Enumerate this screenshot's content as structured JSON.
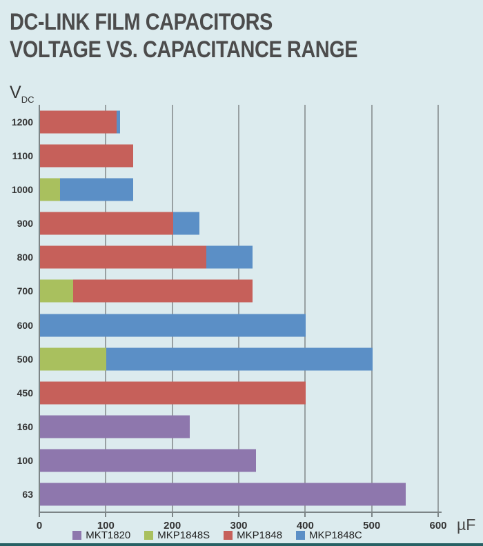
{
  "title": {
    "line1": "DC-LINK FILM CAPACITORS",
    "line2": "VOLTAGE VS. CAPACITANCE RANGE"
  },
  "axis": {
    "y_symbol": "V",
    "y_subscript": "DC",
    "x_unit": "µF"
  },
  "colors": {
    "background": "#dcebee",
    "bottom_strip": "#276064",
    "mkt1820": "#8e77ad",
    "mkp1848s": "#a9c05e",
    "mkp1848": "#c6605a",
    "mkp1848c": "#5b8fc6"
  },
  "chart_data": {
    "type": "bar",
    "orientation": "horizontal-stacked",
    "title": "DC-LINK FILM CAPACITORS VOLTAGE VS. CAPACITANCE RANGE",
    "xlabel": "µF",
    "ylabel": "VDC",
    "xlim": [
      0,
      600
    ],
    "x_ticks": [
      0,
      100,
      200,
      300,
      400,
      500,
      600
    ],
    "grid": true,
    "legend_position": "bottom",
    "categories": [
      "1200",
      "1100",
      "1000",
      "900",
      "800",
      "700",
      "600",
      "500",
      "450",
      "160",
      "100",
      "63"
    ],
    "series_legend": [
      {
        "name": "MKT1820",
        "color": "#8e77ad"
      },
      {
        "name": "MKP1848S",
        "color": "#a9c05e"
      },
      {
        "name": "MKP1848",
        "color": "#c6605a"
      },
      {
        "name": "MKP1848C",
        "color": "#5b8fc6"
      }
    ],
    "rows": [
      {
        "voltage": "1200",
        "segments": [
          {
            "series": "MKP1848",
            "from": 0,
            "to": 115
          },
          {
            "series": "MKP1848C",
            "from": 115,
            "to": 120
          }
        ]
      },
      {
        "voltage": "1100",
        "segments": [
          {
            "series": "MKP1848",
            "from": 0,
            "to": 140
          }
        ]
      },
      {
        "voltage": "1000",
        "segments": [
          {
            "series": "MKP1848S",
            "from": 0,
            "to": 30
          },
          {
            "series": "MKP1848C",
            "from": 30,
            "to": 140
          }
        ]
      },
      {
        "voltage": "900",
        "segments": [
          {
            "series": "MKP1848",
            "from": 0,
            "to": 200
          },
          {
            "series": "MKP1848C",
            "from": 200,
            "to": 240
          }
        ]
      },
      {
        "voltage": "800",
        "segments": [
          {
            "series": "MKP1848",
            "from": 0,
            "to": 250
          },
          {
            "series": "MKP1848C",
            "from": 250,
            "to": 320
          }
        ]
      },
      {
        "voltage": "700",
        "segments": [
          {
            "series": "MKP1848S",
            "from": 0,
            "to": 50
          },
          {
            "series": "MKP1848",
            "from": 50,
            "to": 320
          }
        ]
      },
      {
        "voltage": "600",
        "segments": [
          {
            "series": "MKP1848C",
            "from": 0,
            "to": 400
          }
        ]
      },
      {
        "voltage": "500",
        "segments": [
          {
            "series": "MKP1848S",
            "from": 0,
            "to": 100
          },
          {
            "series": "MKP1848C",
            "from": 100,
            "to": 500
          }
        ]
      },
      {
        "voltage": "450",
        "segments": [
          {
            "series": "MKP1848",
            "from": 0,
            "to": 400
          }
        ]
      },
      {
        "voltage": "160",
        "segments": [
          {
            "series": "MKT1820",
            "from": 0,
            "to": 225
          }
        ]
      },
      {
        "voltage": "100",
        "segments": [
          {
            "series": "MKT1820",
            "from": 0,
            "to": 325
          }
        ]
      },
      {
        "voltage": "63",
        "segments": [
          {
            "series": "MKT1820",
            "from": 0,
            "to": 550
          }
        ]
      }
    ]
  }
}
